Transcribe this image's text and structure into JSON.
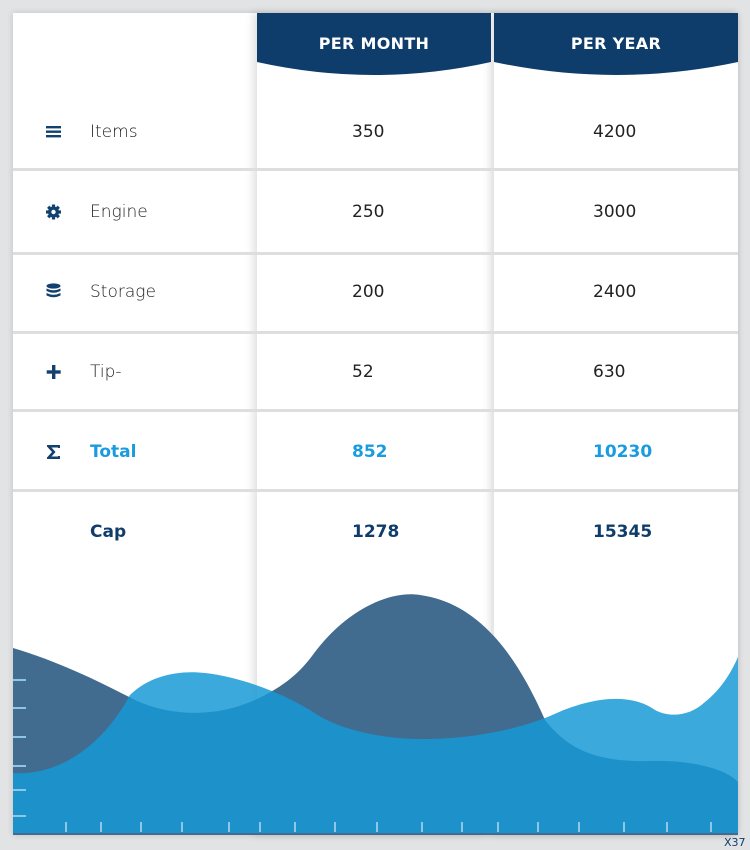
{
  "header": {
    "per_month": "PER MONTH",
    "per_year": "PER YEAR",
    "color": "#0f3d6b"
  },
  "rows": [
    {
      "icon": "list-icon",
      "label": "Items",
      "per_month": "350",
      "per_year": "4200"
    },
    {
      "icon": "gear-icon",
      "label": "Engine",
      "per_month": "250",
      "per_year": "3000"
    },
    {
      "icon": "database-icon",
      "label": "Storage",
      "per_month": "200",
      "per_year": "2400"
    },
    {
      "icon": "plus-icon",
      "label": "Tip-",
      "per_month": "52",
      "per_year": "630"
    }
  ],
  "total": {
    "icon": "sigma-icon",
    "label": "Total",
    "per_month": "852",
    "per_year": "10230",
    "color": "#1a9be0"
  },
  "cap": {
    "label": "Cap",
    "per_month": "1278",
    "per_year": "15345"
  },
  "corner_label": "X37",
  "colors": {
    "dark_wave": "#416b8f",
    "light_wave": "#3aa8dc",
    "overlap": "#1c86c1"
  }
}
